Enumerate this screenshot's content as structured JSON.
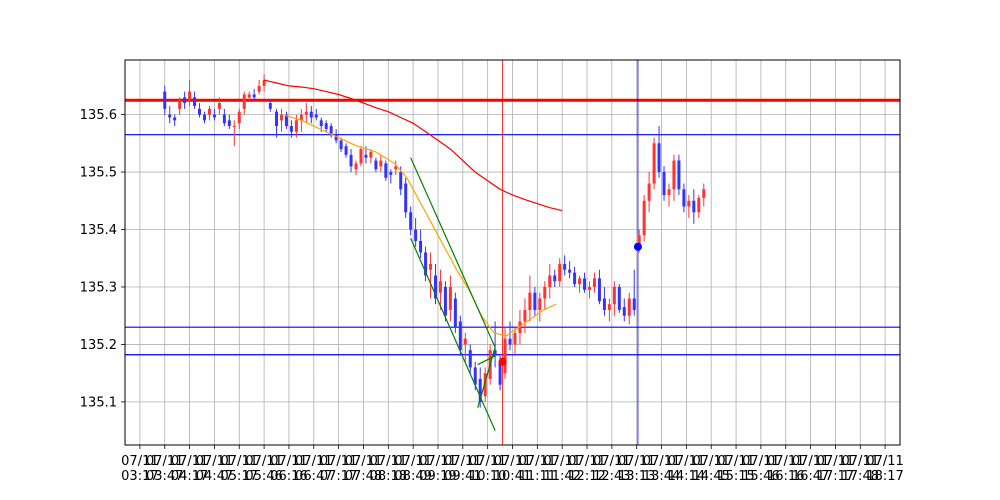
{
  "chart_data": {
    "type": "candlestick",
    "title": "",
    "xlabel": "",
    "ylabel": "",
    "ylim": [
      135.025,
      135.695
    ],
    "yticks": [
      135.1,
      135.2,
      135.3,
      135.4,
      135.5,
      135.6
    ],
    "ytick_labels": [
      "135.1",
      "135.2",
      "135.3",
      "135.4",
      "135.5",
      "135.6"
    ],
    "x_index_range": [
      -1.2,
      61.2
    ],
    "xticks": [
      {
        "i": 0,
        "label": "07/11\n03:17"
      },
      {
        "i": 2,
        "label": "07/11\n03:47"
      },
      {
        "i": 4,
        "label": "07/11\n04:17"
      },
      {
        "i": 6,
        "label": "07/11\n04:47"
      },
      {
        "i": 8,
        "label": "07/11\n05:17"
      },
      {
        "i": 10,
        "label": "07/11\n05:46"
      },
      {
        "i": 12,
        "label": "07/11\n06:16"
      },
      {
        "i": 14,
        "label": "07/11\n06:47"
      },
      {
        "i": 16,
        "label": "07/11\n07:17"
      },
      {
        "i": 18,
        "label": "07/11\n07:48"
      },
      {
        "i": 20,
        "label": "07/11\n08:18"
      },
      {
        "i": 22,
        "label": "07/11\n08:49"
      },
      {
        "i": 24,
        "label": "07/11\n09:19"
      },
      {
        "i": 26,
        "label": "07/11\n09:41"
      },
      {
        "i": 28,
        "label": "07/11\n10:10"
      },
      {
        "i": 30,
        "label": "07/11\n10:41"
      },
      {
        "i": 32,
        "label": "07/11\n11:11"
      },
      {
        "i": 34,
        "label": "07/11\n11:42"
      },
      {
        "i": 36,
        "label": "07/11\n12:12"
      },
      {
        "i": 38,
        "label": "07/11\n12:43"
      },
      {
        "i": 40,
        "label": "07/11\n13:13"
      },
      {
        "i": 42,
        "label": "07/11\n13:44"
      },
      {
        "i": 44,
        "label": "07/11\n14:14"
      },
      {
        "i": 46,
        "label": "07/11\n14:45"
      },
      {
        "i": 48,
        "label": "07/11\n15:15"
      },
      {
        "i": 50,
        "label": "07/11\n15:46"
      },
      {
        "i": 52,
        "label": "07/11\n16:16"
      },
      {
        "i": 54,
        "label": "07/11\n16:47"
      },
      {
        "i": 56,
        "label": "07/11\n17:17"
      },
      {
        "i": 58,
        "label": "07/11\n17:48"
      },
      {
        "i": 60,
        "label": "07/11\n18:17"
      }
    ],
    "grid": true,
    "colors": {
      "up": "#ff3333",
      "down": "#3333ff",
      "ma_short": "#ffa500",
      "ma_long": "#ff0000",
      "channel": "#008000",
      "level": "#0000ff",
      "resistance": "#ff0000"
    },
    "candles": [
      [
        2.0,
        135.64,
        135.65,
        135.6,
        135.61
      ],
      [
        2.4,
        135.6,
        135.615,
        135.585,
        135.595
      ],
      [
        2.8,
        135.595,
        135.6,
        135.58,
        135.59
      ],
      [
        3.2,
        135.61,
        135.63,
        135.6,
        135.625
      ],
      [
        3.6,
        135.63,
        135.64,
        135.61,
        135.62
      ],
      [
        4.0,
        135.625,
        135.66,
        135.615,
        135.64
      ],
      [
        4.4,
        135.63,
        135.64,
        135.61,
        135.615
      ],
      [
        4.8,
        135.61,
        135.62,
        135.595,
        135.6
      ],
      [
        5.2,
        135.6,
        135.605,
        135.585,
        135.59
      ],
      [
        5.6,
        135.6,
        135.615,
        135.59,
        135.61
      ],
      [
        6.0,
        135.6,
        135.61,
        135.59,
        135.595
      ],
      [
        6.4,
        135.61,
        135.63,
        135.6,
        135.62
      ],
      [
        6.8,
        135.6,
        135.61,
        135.58,
        135.585
      ],
      [
        7.2,
        135.59,
        135.6,
        135.575,
        135.58
      ],
      [
        7.6,
        135.58,
        135.59,
        135.545,
        135.58
      ],
      [
        8.0,
        135.585,
        135.61,
        135.575,
        135.605
      ],
      [
        8.4,
        135.61,
        135.64,
        135.6,
        135.635
      ],
      [
        8.8,
        135.63,
        135.64,
        135.625,
        135.635
      ],
      [
        9.2,
        135.635,
        135.645,
        135.625,
        135.63
      ],
      [
        9.6,
        135.64,
        135.66,
        135.635,
        135.65
      ],
      [
        10.0,
        135.65,
        135.67,
        135.64,
        135.66
      ],
      [
        10.5,
        135.62,
        135.625,
        135.605,
        135.61
      ],
      [
        11.0,
        135.605,
        135.61,
        135.56,
        135.58
      ],
      [
        11.4,
        135.59,
        135.61,
        135.57,
        135.6
      ],
      [
        11.8,
        135.6,
        135.605,
        135.575,
        135.58
      ],
      [
        12.2,
        135.58,
        135.59,
        135.56,
        135.57
      ],
      [
        12.6,
        135.57,
        135.6,
        135.56,
        135.59
      ],
      [
        13.0,
        135.59,
        135.61,
        135.57,
        135.6
      ],
      [
        13.4,
        135.6,
        135.62,
        135.585,
        135.605
      ],
      [
        13.8,
        135.605,
        135.615,
        135.585,
        135.595
      ],
      [
        14.2,
        135.6,
        135.61,
        135.59,
        135.595
      ],
      [
        14.6,
        135.59,
        135.595,
        135.57,
        135.58
      ],
      [
        15.0,
        135.585,
        135.59,
        135.57,
        135.575
      ],
      [
        15.4,
        135.58,
        135.585,
        135.56,
        135.565
      ],
      [
        15.8,
        135.565,
        135.575,
        135.55,
        135.555
      ],
      [
        16.2,
        135.555,
        135.56,
        135.535,
        135.54
      ],
      [
        16.6,
        135.545,
        135.55,
        135.525,
        135.53
      ],
      [
        17.0,
        135.53,
        135.54,
        135.5,
        135.51
      ],
      [
        17.4,
        135.505,
        135.52,
        135.495,
        135.515
      ],
      [
        17.8,
        135.515,
        135.545,
        135.51,
        135.54
      ],
      [
        18.2,
        135.53,
        135.545,
        135.515,
        135.525
      ],
      [
        18.6,
        135.525,
        135.54,
        135.515,
        135.535
      ],
      [
        19.0,
        135.52,
        135.525,
        135.5,
        135.505
      ],
      [
        19.4,
        135.51,
        135.53,
        135.5,
        135.52
      ],
      [
        19.8,
        135.515,
        135.52,
        135.485,
        135.49
      ],
      [
        20.2,
        135.5,
        135.505,
        135.48,
        135.495
      ],
      [
        20.6,
        135.505,
        135.52,
        135.495,
        135.51
      ],
      [
        21.0,
        135.5,
        135.51,
        135.46,
        135.47
      ],
      [
        21.4,
        135.48,
        135.49,
        135.42,
        135.43
      ],
      [
        21.8,
        135.43,
        135.44,
        135.39,
        135.4
      ],
      [
        22.2,
        135.4,
        135.42,
        135.37,
        135.38
      ],
      [
        22.6,
        135.38,
        135.4,
        135.35,
        135.36
      ],
      [
        23.0,
        135.36,
        135.37,
        135.31,
        135.32
      ],
      [
        23.4,
        135.33,
        135.36,
        135.28,
        135.34
      ],
      [
        23.8,
        135.32,
        135.34,
        135.27,
        135.28
      ],
      [
        24.2,
        135.29,
        135.33,
        135.26,
        135.31
      ],
      [
        24.6,
        135.3,
        135.31,
        135.24,
        135.25
      ],
      [
        25.0,
        135.26,
        135.32,
        135.24,
        135.3
      ],
      [
        25.4,
        135.28,
        135.29,
        135.22,
        135.23
      ],
      [
        25.8,
        135.24,
        135.25,
        135.18,
        135.19
      ],
      [
        26.2,
        135.2,
        135.22,
        135.17,
        135.21
      ],
      [
        26.6,
        135.19,
        135.2,
        135.15,
        135.16
      ],
      [
        27.0,
        135.16,
        135.17,
        135.12,
        135.13
      ],
      [
        27.4,
        135.14,
        135.16,
        135.09,
        135.1
      ],
      [
        27.8,
        135.11,
        135.16,
        135.1,
        135.15
      ],
      [
        28.2,
        135.14,
        135.2,
        135.13,
        135.19
      ],
      [
        28.6,
        135.19,
        135.24,
        135.16,
        135.18
      ],
      [
        29.0,
        135.17,
        135.18,
        135.12,
        135.13
      ],
      [
        29.4,
        135.15,
        135.23,
        135.14,
        135.21
      ],
      [
        29.8,
        135.21,
        135.24,
        135.19,
        135.2
      ],
      [
        30.2,
        135.2,
        135.23,
        135.18,
        135.22
      ],
      [
        30.6,
        135.22,
        135.26,
        135.2,
        135.24
      ],
      [
        31.0,
        135.24,
        135.28,
        135.22,
        135.26
      ],
      [
        31.4,
        135.26,
        135.32,
        135.24,
        135.29
      ],
      [
        31.8,
        135.29,
        135.3,
        135.25,
        135.26
      ],
      [
        32.2,
        135.26,
        135.29,
        135.24,
        135.28
      ],
      [
        32.6,
        135.28,
        135.31,
        135.26,
        135.3
      ],
      [
        33.0,
        135.3,
        135.34,
        135.28,
        135.32
      ],
      [
        33.4,
        135.32,
        135.33,
        135.3,
        135.31
      ],
      [
        33.8,
        135.31,
        135.35,
        135.3,
        135.34
      ],
      [
        34.2,
        135.34,
        135.355,
        135.32,
        135.33
      ],
      [
        34.6,
        135.33,
        135.345,
        135.315,
        135.325
      ],
      [
        35.0,
        135.325,
        135.335,
        135.3,
        135.305
      ],
      [
        35.4,
        135.305,
        135.32,
        135.29,
        135.315
      ],
      [
        35.8,
        135.315,
        135.325,
        135.29,
        135.295
      ],
      [
        36.2,
        135.295,
        135.31,
        135.28,
        135.3
      ],
      [
        36.6,
        135.3,
        135.325,
        135.29,
        135.315
      ],
      [
        37.0,
        135.315,
        135.33,
        135.27,
        135.275
      ],
      [
        37.4,
        135.28,
        135.3,
        135.25,
        135.26
      ],
      [
        37.8,
        135.26,
        135.28,
        135.24,
        135.27
      ],
      [
        38.2,
        135.27,
        135.31,
        135.25,
        135.3
      ],
      [
        38.6,
        135.3,
        135.305,
        135.255,
        135.26
      ],
      [
        39.0,
        135.265,
        135.28,
        135.24,
        135.25
      ],
      [
        39.4,
        135.25,
        135.29,
        135.235,
        135.28
      ],
      [
        39.8,
        135.28,
        135.33,
        135.25,
        135.26
      ],
      [
        40.2,
        135.37,
        135.4,
        135.36,
        135.39
      ],
      [
        40.6,
        135.39,
        135.46,
        135.38,
        135.45
      ],
      [
        41.0,
        135.45,
        135.5,
        135.43,
        135.48
      ],
      [
        41.4,
        135.48,
        135.56,
        135.47,
        135.55
      ],
      [
        41.8,
        135.55,
        135.58,
        135.49,
        135.5
      ],
      [
        42.2,
        135.5,
        135.51,
        135.45,
        135.46
      ],
      [
        42.6,
        135.46,
        135.48,
        135.44,
        135.47
      ],
      [
        43.0,
        135.47,
        135.53,
        135.45,
        135.52
      ],
      [
        43.4,
        135.52,
        135.53,
        135.46,
        135.47
      ],
      [
        43.8,
        135.47,
        135.48,
        135.43,
        135.44
      ],
      [
        44.2,
        135.44,
        135.46,
        135.42,
        135.45
      ],
      [
        44.6,
        135.45,
        135.47,
        135.41,
        135.43
      ],
      [
        45.0,
        135.43,
        135.46,
        135.42,
        135.455
      ],
      [
        45.4,
        135.455,
        135.48,
        135.44,
        135.47
      ]
    ],
    "series": [
      {
        "type": "line",
        "color_key": "ma_short",
        "points": [
          [
            11.5,
            135.6
          ],
          [
            13.0,
            135.59
          ],
          [
            14.5,
            135.575
          ],
          [
            16.0,
            135.56
          ],
          [
            17.5,
            135.545
          ],
          [
            19.0,
            135.535
          ],
          [
            20.5,
            135.515
          ],
          [
            21.5,
            135.49
          ],
          [
            22.5,
            135.45
          ],
          [
            23.5,
            135.41
          ],
          [
            24.5,
            135.37
          ],
          [
            25.5,
            135.33
          ],
          [
            26.5,
            135.295
          ],
          [
            27.5,
            135.25
          ],
          [
            28.5,
            135.22
          ],
          [
            29.5,
            135.215
          ],
          [
            30.5,
            135.23
          ],
          [
            31.5,
            135.245
          ],
          [
            32.5,
            135.26
          ],
          [
            33.5,
            135.27
          ]
        ]
      },
      {
        "type": "line",
        "color_key": "ma_long",
        "points": [
          [
            10.0,
            135.66
          ],
          [
            11.0,
            135.655
          ],
          [
            12.0,
            135.65
          ],
          [
            13.0,
            135.648
          ],
          [
            14.0,
            135.645
          ],
          [
            15.0,
            135.64
          ],
          [
            16.0,
            135.635
          ],
          [
            17.0,
            135.628
          ],
          [
            18.0,
            135.62
          ],
          [
            19.0,
            135.612
          ],
          [
            20.0,
            135.605
          ],
          [
            21.0,
            135.595
          ],
          [
            22.0,
            135.585
          ],
          [
            23.0,
            135.57
          ],
          [
            24.0,
            135.555
          ],
          [
            25.0,
            135.54
          ],
          [
            26.0,
            135.52
          ],
          [
            27.0,
            135.5
          ],
          [
            28.0,
            135.485
          ],
          [
            29.0,
            135.47
          ],
          [
            30.0,
            135.46
          ],
          [
            31.0,
            135.452
          ],
          [
            32.0,
            135.445
          ],
          [
            33.0,
            135.438
          ],
          [
            34.0,
            135.433
          ]
        ]
      }
    ],
    "channel_lines": [
      [
        [
          21.8,
          135.525
        ],
        [
          28.6,
          135.195
        ]
      ],
      [
        [
          21.8,
          135.385
        ],
        [
          28.6,
          135.05
        ]
      ],
      [
        [
          27.2,
          135.09
        ],
        [
          28.6,
          135.195
        ]
      ],
      [
        [
          27.2,
          135.165
        ],
        [
          28.6,
          135.18
        ]
      ]
    ],
    "hlines": [
      {
        "y": 135.625,
        "color_key": "resistance",
        "width": 3
      },
      {
        "y": 135.565,
        "color_key": "level",
        "width": 1.2
      },
      {
        "y": 135.23,
        "color_key": "level",
        "width": 1.2
      },
      {
        "y": 135.182,
        "color_key": "level",
        "width": 1.2
      }
    ],
    "vlines": [
      {
        "x": 29.2,
        "color_key": "resistance",
        "width": 0.8
      },
      {
        "x": 40.1,
        "color_key": "level",
        "width": 0.8
      }
    ],
    "markers": [
      {
        "x": 29.2,
        "y": 135.17,
        "color_key": "resistance"
      },
      {
        "x": 40.1,
        "y": 135.37,
        "color_key": "level"
      }
    ]
  }
}
